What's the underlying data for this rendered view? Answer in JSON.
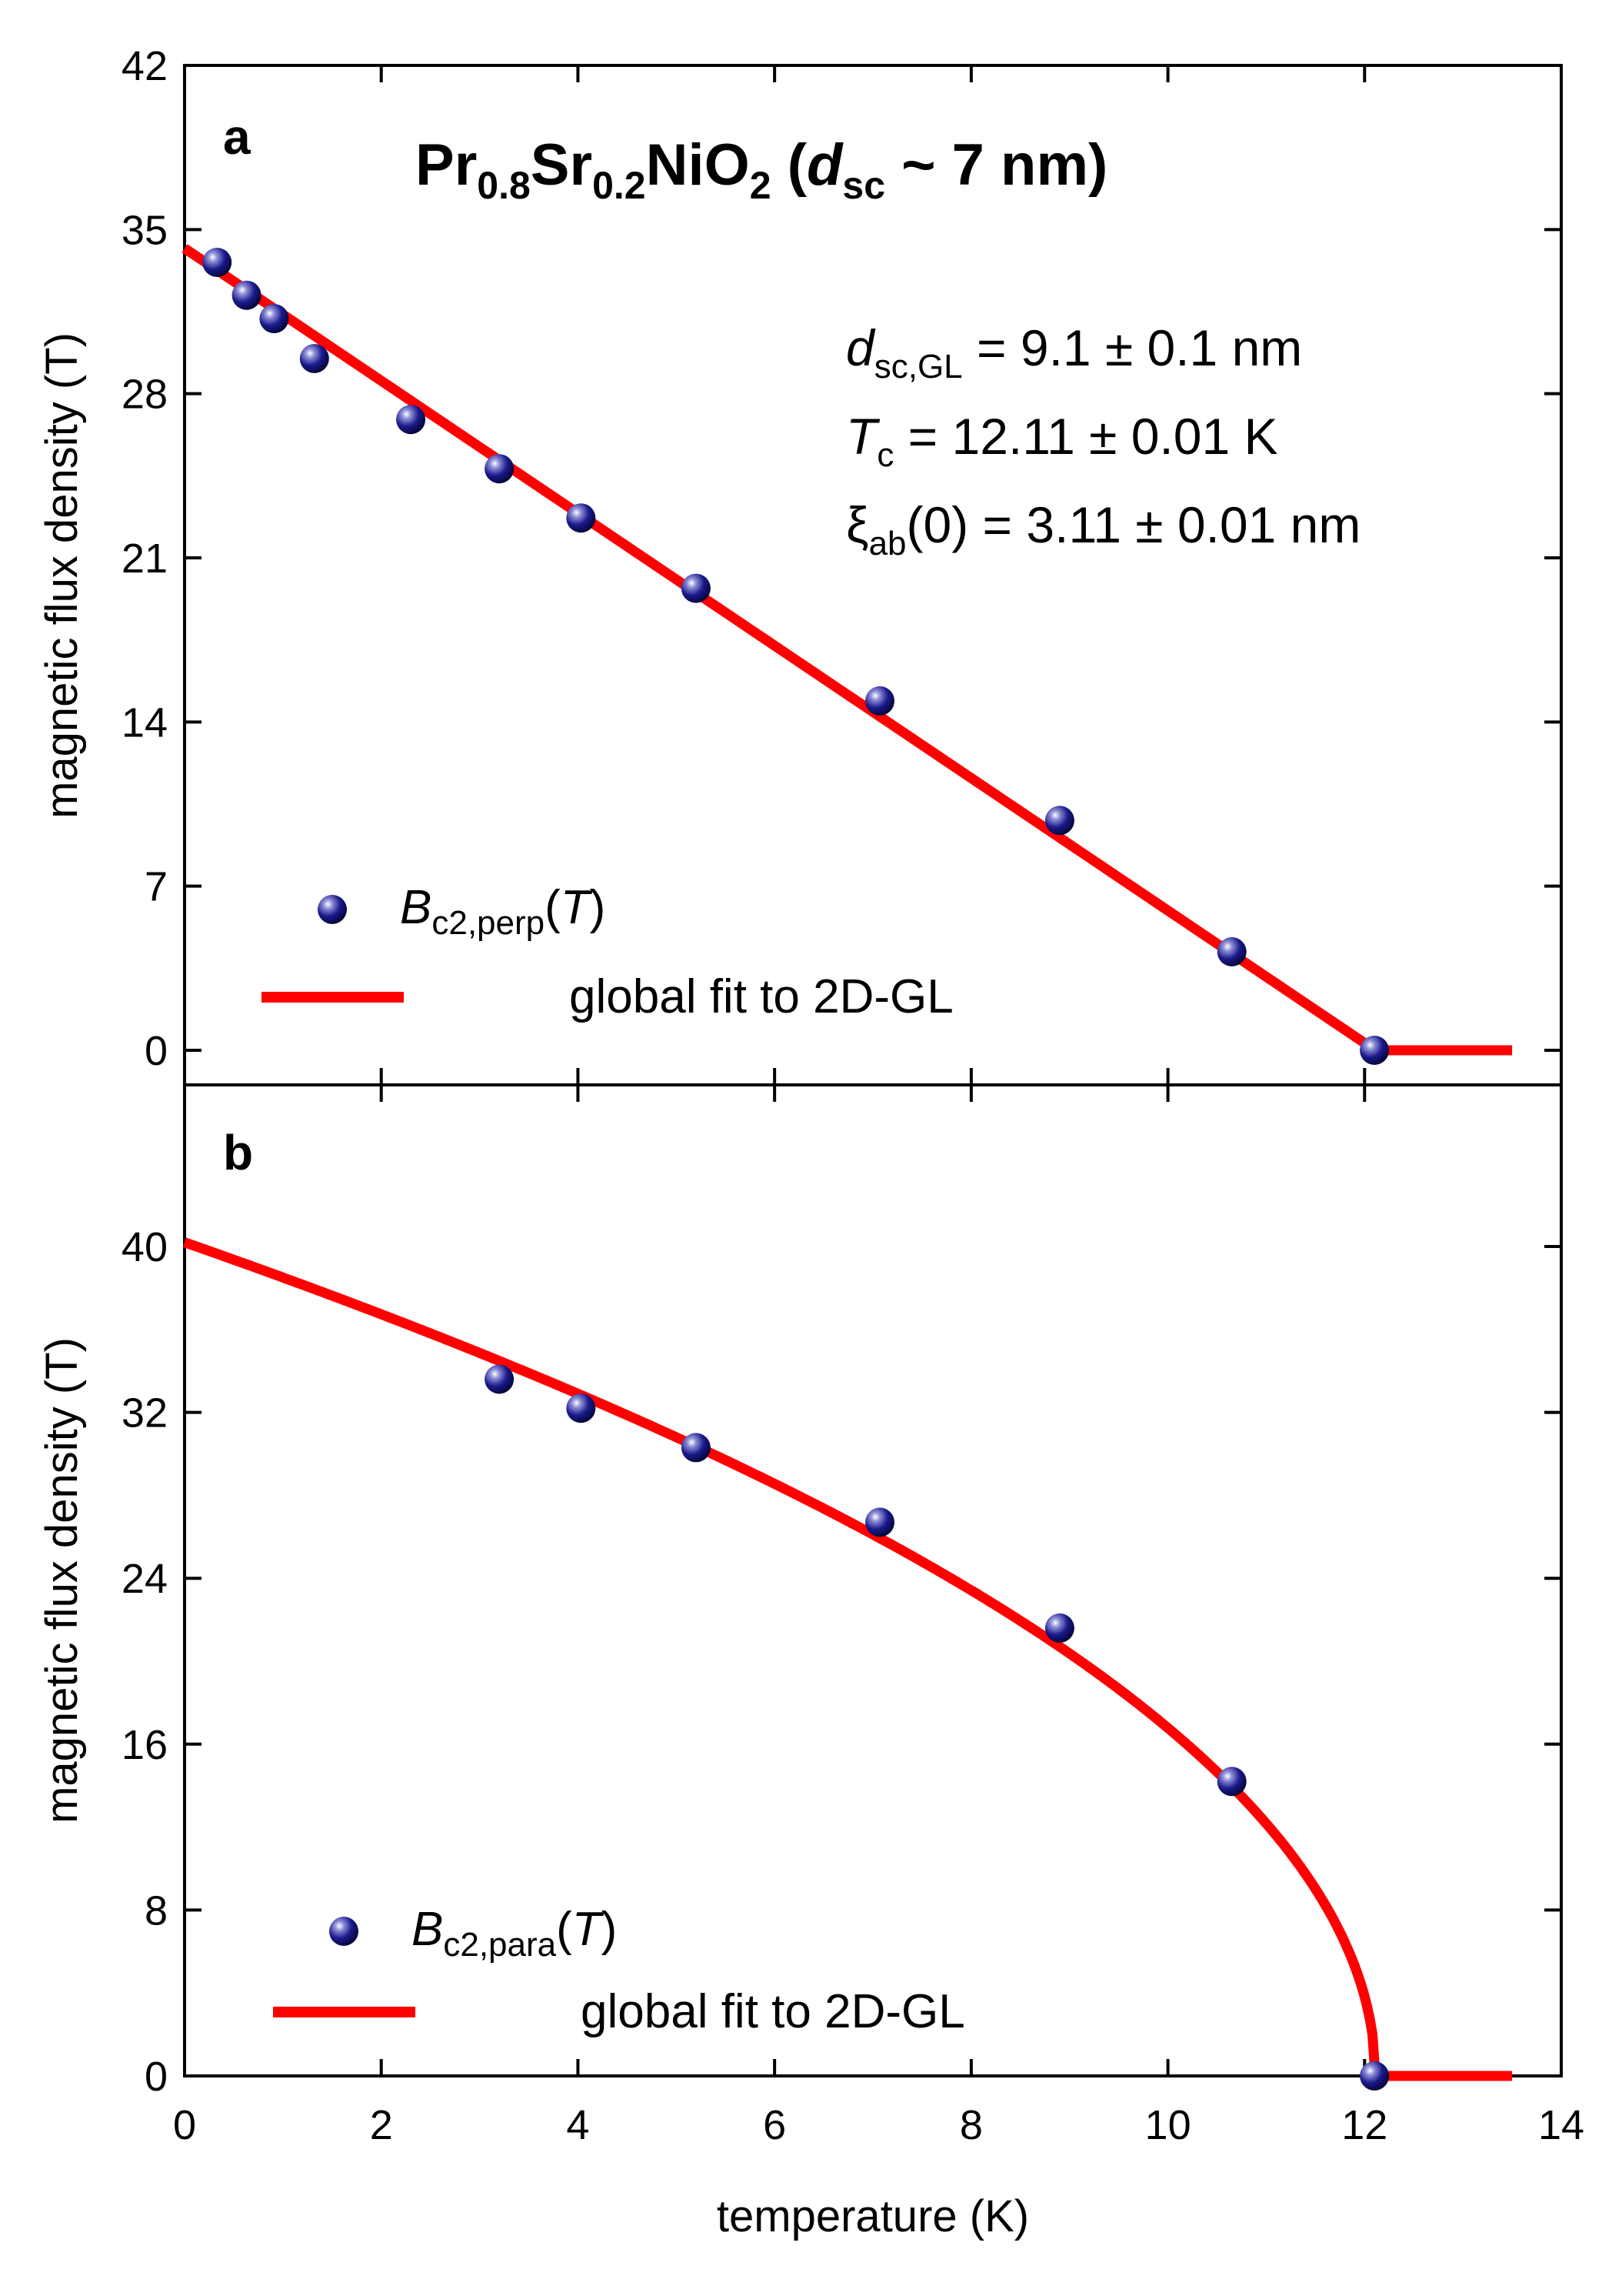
{
  "chart_data": [
    {
      "type": "scatter",
      "panel": "a",
      "title": {
        "pre": "Pr",
        "sub1": "0.8",
        "mid": "Sr",
        "sub2": "0.2",
        "post": "NiO",
        "sub3": "2",
        "paren_open": " (",
        "dsym": "d",
        "dsub": "sc",
        "paren_rest": " ~ 7 nm)"
      },
      "params": [
        {
          "sym": "d",
          "sub": "sc,GL",
          "rest": " = 9.1 ± 0.1 nm",
          "italic": true
        },
        {
          "sym": "T",
          "sub": "c",
          "rest": " = 12.11 ± 0.01 K",
          "italic": true
        },
        {
          "sym": "ξ",
          "sub": "ab",
          "rest": "(0) = 3.11 ± 0.01 nm",
          "italic": false
        }
      ],
      "ylabel": "magnetic flux density (T)",
      "ylim": [
        0,
        42
      ],
      "yticks": [
        0,
        7,
        14,
        21,
        28,
        35,
        42
      ],
      "xlim": [
        0,
        14
      ],
      "series": [
        {
          "name": "Bc2,perp(T)",
          "legend": {
            "sym": "B",
            "sub": "c2,perp",
            "open": "(",
            "arg": "T",
            "close": ")"
          },
          "color": "#1a1a8c",
          "x": [
            0.33,
            0.63,
            0.91,
            1.32,
            2.3,
            3.2,
            4.03,
            5.2,
            7.07,
            8.9,
            10.65,
            12.1
          ],
          "y": [
            33.6,
            32.2,
            31.2,
            29.5,
            26.9,
            24.8,
            22.7,
            19.7,
            14.9,
            9.8,
            4.2,
            0.0
          ]
        },
        {
          "name": "global fit to 2D-GL",
          "legend_label": "global fit to 2D-GL",
          "color": "#ff0000",
          "x": [
            0,
            12.11,
            13.5
          ],
          "y": [
            34.2,
            0,
            0
          ]
        }
      ]
    },
    {
      "type": "scatter",
      "panel": "b",
      "xlabel": "temperature (K)",
      "ylabel": "magnetic flux density (T)",
      "ylim": [
        0,
        48
      ],
      "yticks": [
        0,
        8,
        16,
        24,
        32,
        40
      ],
      "xlim": [
        0,
        14
      ],
      "xticks": [
        0,
        2,
        4,
        6,
        8,
        10,
        12,
        14
      ],
      "series": [
        {
          "name": "Bc2,para(T)",
          "legend": {
            "sym": "B",
            "sub": "c2,para",
            "open": "(",
            "arg": "T",
            "close": ")"
          },
          "color": "#1a1a8c",
          "x": [
            3.2,
            4.03,
            5.2,
            7.07,
            8.9,
            10.65,
            12.1
          ],
          "y": [
            33.6,
            32.2,
            30.3,
            26.7,
            21.6,
            14.2,
            0.0
          ]
        },
        {
          "name": "global fit to 2D-GL",
          "legend_label": "global fit to 2D-GL",
          "color": "#ff0000",
          "fit_model": "B0*sqrt(1 - T/Tc), flat zero above Tc",
          "B0": 40.2,
          "Tc": 12.11,
          "x_end": 13.5
        }
      ]
    }
  ]
}
